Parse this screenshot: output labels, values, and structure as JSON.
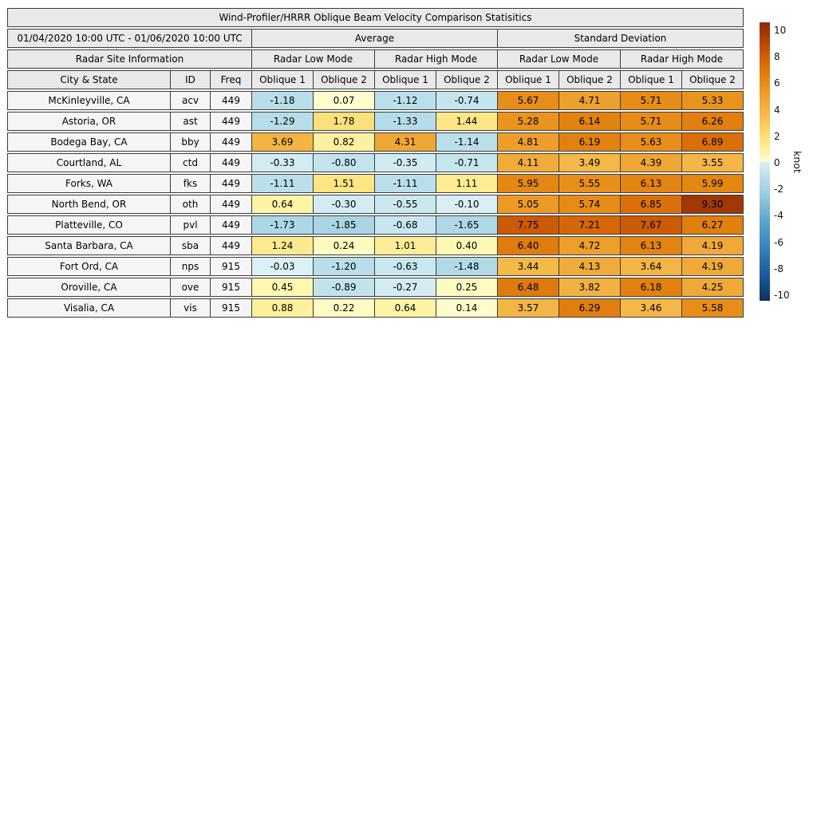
{
  "figure": {
    "title": "Wind-Profiler/HRRR Oblique Beam Velocity Comparison Statisitics",
    "period": "01/04/2020 10:00 UTC - 01/06/2020 10:00 UTC",
    "group_headers": {
      "average": "Average",
      "stddev": "Standard Deviation"
    },
    "section_headers": {
      "site_info": "Radar Site Information",
      "avg_low": "Radar Low Mode",
      "avg_high": "Radar High Mode",
      "sd_low": "Radar Low Mode",
      "sd_high": "Radar High Mode"
    },
    "column_headers": [
      "City & State",
      "ID",
      "Freq",
      "Oblique 1",
      "Oblique 2",
      "Oblique 1",
      "Oblique 2",
      "Oblique 1",
      "Oblique 2",
      "Oblique 1",
      "Oblique 2"
    ]
  },
  "chart_data": {
    "type": "heatmap",
    "title": "Wind-Profiler/HRRR Oblique Beam Velocity Comparison Statisitics",
    "period": "01/04/2020 10:00 UTC - 01/06/2020 10:00 UTC",
    "column_groups": [
      {
        "label": "Average",
        "modes": [
          "Radar Low Mode",
          "Radar High Mode"
        ]
      },
      {
        "label": "Standard Deviation",
        "modes": [
          "Radar Low Mode",
          "Radar High Mode"
        ]
      }
    ],
    "value_columns": [
      "Average Low Oblique 1",
      "Average Low Oblique 2",
      "Average High Oblique 1",
      "Average High Oblique 2",
      "StdDev Low Oblique 1",
      "StdDev Low Oblique 2",
      "StdDev High Oblique 1",
      "StdDev High Oblique 2"
    ],
    "rows": [
      {
        "city": "McKinleyville, CA",
        "id": "acv",
        "freq": "449",
        "values": [
          -1.18,
          0.07,
          -1.12,
          -0.74,
          5.67,
          4.71,
          5.71,
          5.33
        ]
      },
      {
        "city": "Astoria, OR",
        "id": "ast",
        "freq": "449",
        "values": [
          -1.29,
          1.78,
          -1.33,
          1.44,
          5.28,
          6.14,
          5.71,
          6.26
        ]
      },
      {
        "city": "Bodega Bay, CA",
        "id": "bby",
        "freq": "449",
        "values": [
          3.69,
          0.82,
          4.31,
          -1.14,
          4.81,
          6.19,
          5.63,
          6.89
        ]
      },
      {
        "city": "Courtland, AL",
        "id": "ctd",
        "freq": "449",
        "values": [
          -0.33,
          -0.8,
          -0.35,
          -0.71,
          4.11,
          3.49,
          4.39,
          3.55
        ]
      },
      {
        "city": "Forks, WA",
        "id": "fks",
        "freq": "449",
        "values": [
          -1.11,
          1.51,
          -1.11,
          1.11,
          5.95,
          5.55,
          6.13,
          5.99
        ]
      },
      {
        "city": "North Bend, OR",
        "id": "oth",
        "freq": "449",
        "values": [
          0.64,
          -0.3,
          -0.55,
          -0.1,
          5.05,
          5.74,
          6.85,
          9.3
        ]
      },
      {
        "city": "Platteville, CO",
        "id": "pvl",
        "freq": "449",
        "values": [
          -1.73,
          -1.85,
          -0.68,
          -1.65,
          7.75,
          7.21,
          7.67,
          6.27
        ]
      },
      {
        "city": "Santa Barbara, CA",
        "id": "sba",
        "freq": "449",
        "values": [
          1.24,
          0.24,
          1.01,
          0.4,
          6.4,
          4.72,
          6.13,
          4.19
        ]
      },
      {
        "city": "Fort Ord, CA",
        "id": "nps",
        "freq": "915",
        "values": [
          -0.03,
          -1.2,
          -0.63,
          -1.48,
          3.44,
          4.13,
          3.64,
          4.19
        ]
      },
      {
        "city": "Oroville, CA",
        "id": "ove",
        "freq": "915",
        "values": [
          0.45,
          -0.89,
          -0.27,
          0.25,
          6.48,
          3.82,
          6.18,
          4.25
        ]
      },
      {
        "city": "Visalia, CA",
        "id": "vis",
        "freq": "915",
        "values": [
          0.88,
          0.22,
          0.64,
          0.14,
          3.57,
          6.29,
          3.46,
          5.58
        ]
      }
    ],
    "colorbar": {
      "label": "knot",
      "min": -10,
      "max": 10,
      "ticks": [
        10,
        8,
        6,
        4,
        2,
        0,
        -2,
        -4,
        -6,
        -8,
        -10
      ]
    },
    "colors": {
      "negative_stops": [
        [
          -10,
          "#0f3061"
        ],
        [
          -8,
          "#1e5f9e"
        ],
        [
          -6,
          "#3a86bc"
        ],
        [
          -4,
          "#63aacd"
        ],
        [
          -2,
          "#a6d3e3"
        ],
        [
          -1,
          "#bce1eb"
        ],
        [
          0,
          "#ddf1f6"
        ]
      ],
      "positive_stops": [
        [
          0,
          "#ffffd5"
        ],
        [
          0.5,
          "#fdf6ac"
        ],
        [
          1,
          "#fcee96"
        ],
        [
          2,
          "#fbdc74"
        ],
        [
          3,
          "#f6c253"
        ],
        [
          4,
          "#f1ad3d"
        ],
        [
          5,
          "#ec9a26"
        ],
        [
          6,
          "#e48612"
        ],
        [
          7,
          "#d96c08"
        ],
        [
          8,
          "#c65304"
        ],
        [
          9,
          "#a93c05"
        ],
        [
          10,
          "#8b2a06"
        ]
      ],
      "header_bg": "#e9e9e9",
      "site_bg": "#f5f5f5",
      "border": "#3b3b3b"
    }
  }
}
